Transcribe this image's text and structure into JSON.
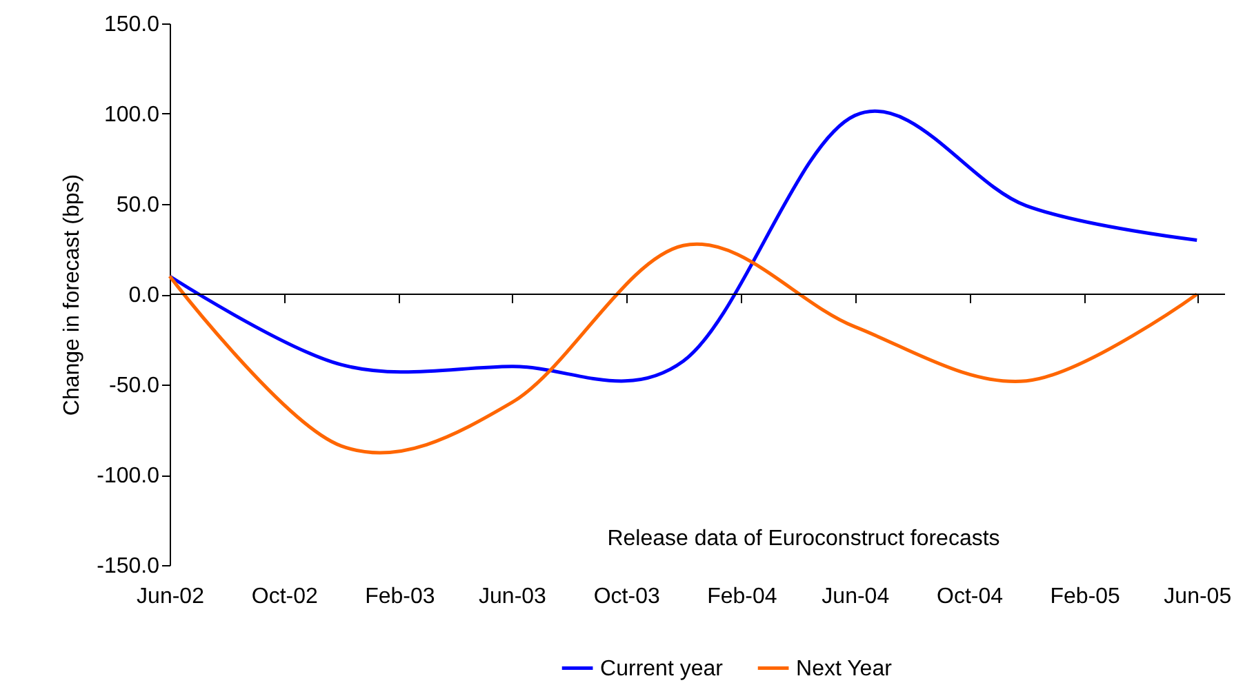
{
  "chart_data": {
    "type": "line",
    "xlabel": "Release data of Euroconstruct forecasts",
    "ylabel": "Change in forecast (bps)",
    "x": [
      "2002-06",
      "2002-12",
      "2003-06",
      "2003-12",
      "2004-06",
      "2004-12",
      "2005-06"
    ],
    "series": [
      {
        "name": "Current year",
        "color": "#0000ff",
        "values": [
          10,
          -39,
          -40,
          -37,
          99,
          49,
          30
        ]
      },
      {
        "name": "Next Year",
        "color": "#ff6600",
        "values": [
          10,
          -84,
          -60,
          27,
          -18,
          -48,
          0
        ]
      }
    ],
    "xlim": [
      "2002-06",
      "2005-07"
    ],
    "xticks": [
      {
        "value": "2002-06",
        "label": "Jun-02"
      },
      {
        "value": "2002-10",
        "label": "Oct-02"
      },
      {
        "value": "2003-02",
        "label": "Feb-03"
      },
      {
        "value": "2003-06",
        "label": "Jun-03"
      },
      {
        "value": "2003-10",
        "label": "Oct-03"
      },
      {
        "value": "2004-02",
        "label": "Feb-04"
      },
      {
        "value": "2004-06",
        "label": "Jun-04"
      },
      {
        "value": "2004-10",
        "label": "Oct-04"
      },
      {
        "value": "2005-02",
        "label": "Feb-05"
      },
      {
        "value": "2005-06",
        "label": "Jun-05"
      }
    ],
    "ylim": [
      -150,
      150
    ],
    "yticks": [
      {
        "value": -150,
        "label": "-150.0"
      },
      {
        "value": -100,
        "label": "-100.0"
      },
      {
        "value": -50,
        "label": "-50.0"
      },
      {
        "value": 0,
        "label": "0.0"
      },
      {
        "value": 50,
        "label": "50.0"
      },
      {
        "value": 100,
        "label": "100.0"
      },
      {
        "value": 150,
        "label": "150.0"
      }
    ],
    "ref_lines": [
      {
        "axis": "y",
        "value": 0,
        "color": "#000000"
      }
    ],
    "legend": "bottom",
    "marker": "none",
    "line_style": "solid",
    "grid": false
  }
}
